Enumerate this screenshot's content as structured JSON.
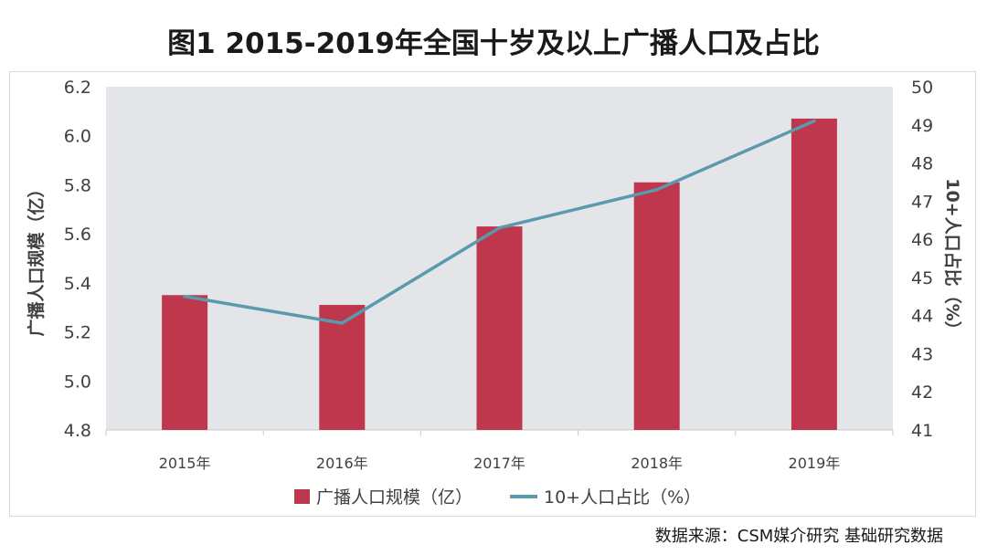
{
  "title": "图1 2015-2019年全国十岁及以上广播人口及占比",
  "source": "数据来源：CSM媒介研究 基础研究数据",
  "chart_data": {
    "type": "bar",
    "categories": [
      "2015年",
      "2016年",
      "2017年",
      "2018年",
      "2019年"
    ],
    "series": [
      {
        "name": "广播人口规模（亿）",
        "type": "bar",
        "axis": "left",
        "values": [
          5.35,
          5.31,
          5.63,
          5.81,
          6.07
        ],
        "color": "#be374c"
      },
      {
        "name": "10+人口占比（%）",
        "type": "line",
        "axis": "right",
        "values": [
          44.5,
          43.8,
          46.3,
          47.3,
          49.1
        ],
        "color": "#5b9aad"
      }
    ],
    "ylabel": "广播人口规模（亿）",
    "ylabel_right": "10+人口占比（%）",
    "ylim": [
      4.8,
      6.2
    ],
    "ylim_right": [
      41,
      50
    ],
    "yticks": [
      "4.8",
      "5.0",
      "5.2",
      "5.4",
      "5.6",
      "5.8",
      "6.0",
      "6.2"
    ],
    "yticks_right": [
      "41",
      "42",
      "43",
      "44",
      "45",
      "46",
      "47",
      "48",
      "49",
      "50"
    ],
    "legend": "bottom",
    "plot_background": "#e4e5e9"
  }
}
